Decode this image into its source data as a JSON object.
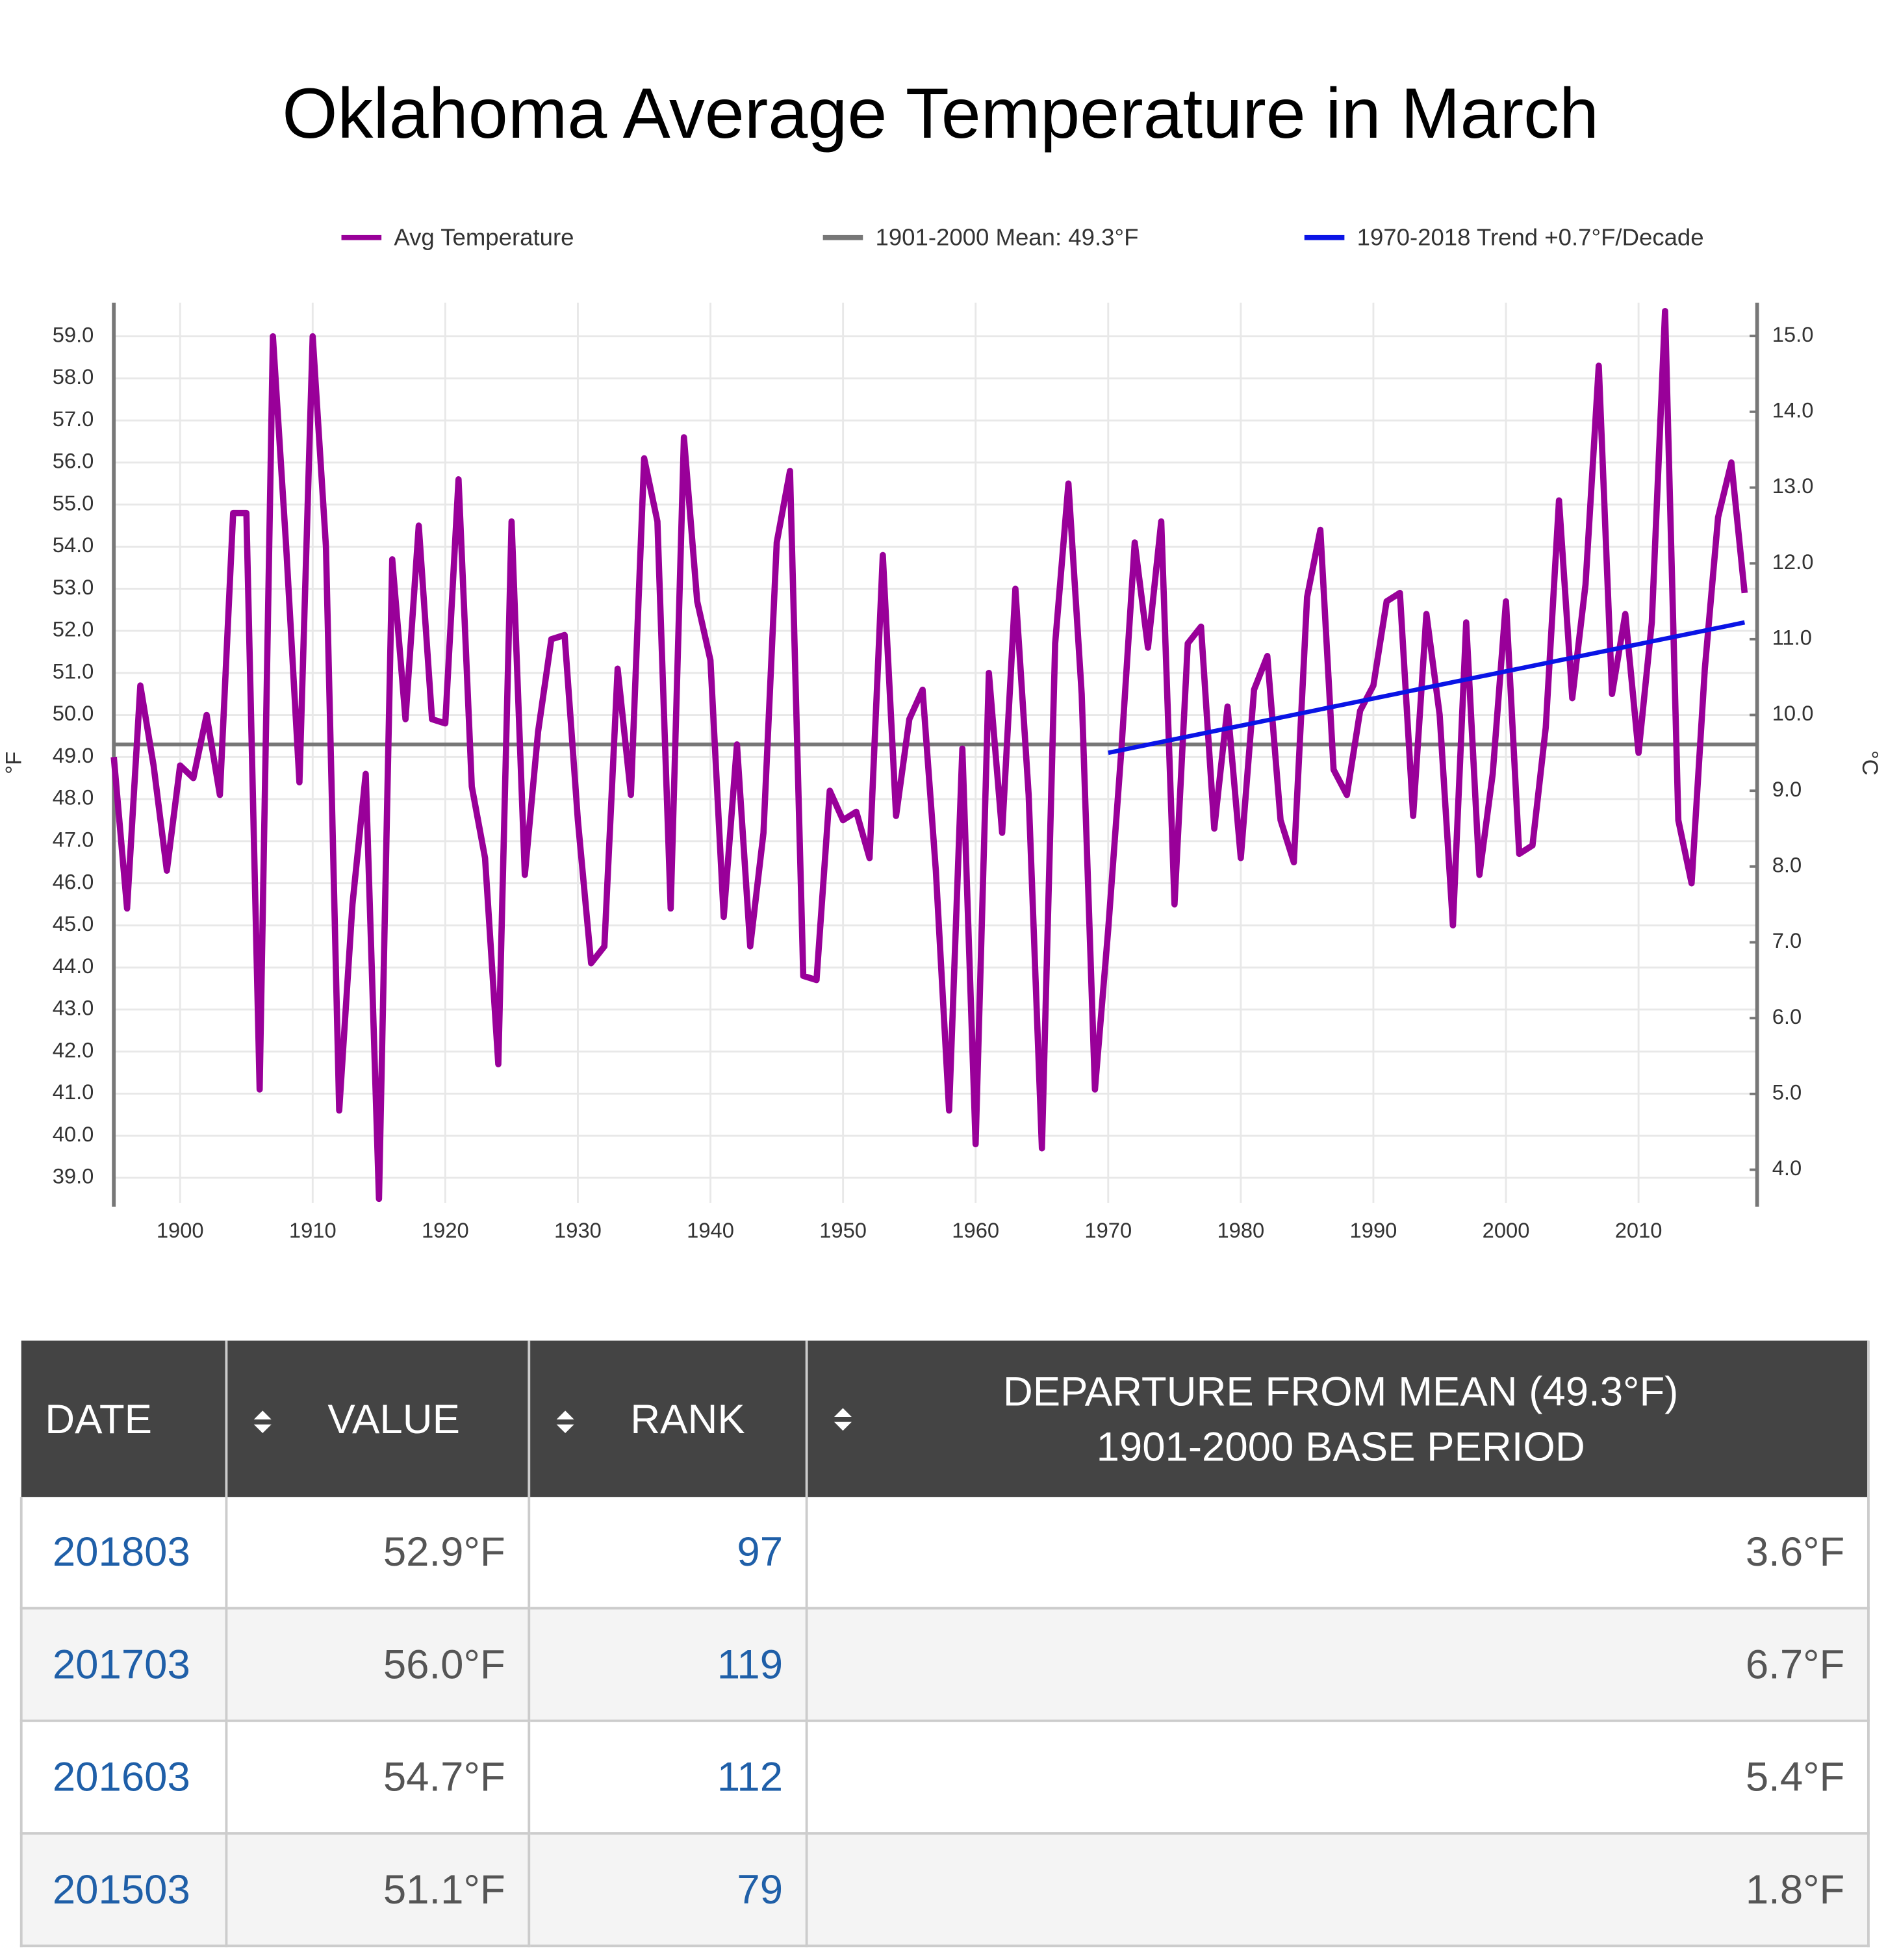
{
  "chart_data": {
    "type": "line",
    "title": "Oklahoma Average Temperature in March",
    "y_label": "°F",
    "y2_label": "°C",
    "x": [
      1895,
      1896,
      1897,
      1898,
      1899,
      1900,
      1901,
      1902,
      1903,
      1904,
      1905,
      1906,
      1907,
      1908,
      1909,
      1910,
      1911,
      1912,
      1913,
      1914,
      1915,
      1916,
      1917,
      1918,
      1919,
      1920,
      1921,
      1922,
      1923,
      1924,
      1925,
      1926,
      1927,
      1928,
      1929,
      1930,
      1931,
      1932,
      1933,
      1934,
      1935,
      1936,
      1937,
      1938,
      1939,
      1940,
      1941,
      1942,
      1943,
      1944,
      1945,
      1946,
      1947,
      1948,
      1949,
      1950,
      1951,
      1952,
      1953,
      1954,
      1955,
      1956,
      1957,
      1958,
      1959,
      1960,
      1961,
      1962,
      1963,
      1964,
      1965,
      1966,
      1967,
      1968,
      1969,
      1970,
      1971,
      1972,
      1973,
      1974,
      1975,
      1976,
      1977,
      1978,
      1979,
      1980,
      1981,
      1982,
      1983,
      1984,
      1985,
      1986,
      1987,
      1988,
      1989,
      1990,
      1991,
      1992,
      1993,
      1994,
      1995,
      1996,
      1997,
      1998,
      1999,
      2000,
      2001,
      2002,
      2003,
      2004,
      2005,
      2006,
      2007,
      2008,
      2009,
      2010,
      2011,
      2012,
      2013,
      2014,
      2015,
      2016,
      2017,
      2018
    ],
    "series": [
      {
        "name": "Avg Temperature",
        "color": "#990099",
        "values": [
          49.0,
          45.4,
          50.7,
          48.8,
          46.3,
          48.8,
          48.5,
          50.0,
          48.1,
          54.8,
          54.8,
          41.1,
          59.0,
          54.0,
          48.4,
          59.0,
          54.0,
          40.6,
          45.5,
          48.6,
          38.5,
          53.7,
          49.9,
          54.5,
          49.9,
          49.8,
          55.6,
          48.3,
          46.6,
          41.7,
          54.6,
          46.2,
          49.6,
          51.8,
          51.9,
          47.5,
          44.1,
          44.5,
          51.1,
          48.1,
          56.1,
          54.6,
          45.4,
          56.6,
          52.7,
          51.3,
          45.2,
          49.3,
          44.5,
          47.2,
          54.1,
          55.8,
          43.8,
          43.7,
          48.2,
          47.5,
          47.7,
          46.6,
          53.8,
          47.6,
          49.9,
          50.6,
          46.3,
          40.6,
          49.2,
          39.8,
          51.0,
          47.2,
          53.0,
          48.1,
          39.7,
          51.7,
          55.5,
          50.5,
          41.1,
          44.9,
          49.2,
          54.1,
          51.6,
          54.6,
          45.5,
          51.7,
          52.1,
          47.3,
          50.2,
          46.6,
          50.6,
          51.4,
          47.5,
          46.5,
          52.8,
          54.4,
          48.7,
          48.1,
          50.1,
          50.7,
          52.7,
          52.9,
          47.6,
          52.4,
          50.0,
          45.0,
          52.2,
          46.2,
          48.6,
          52.7,
          46.7,
          46.9,
          49.7,
          55.1,
          50.4,
          53.1,
          58.3,
          50.5,
          52.4,
          49.1,
          52.2,
          59.6,
          47.5,
          46.0,
          51.1,
          54.7,
          56.0,
          52.9
        ]
      }
    ],
    "mean": {
      "name": "1901-2000 Mean: 49.3°F",
      "color": "#777777",
      "value": 49.3
    },
    "trend": {
      "name": "1970-2018 Trend +0.7°F/Decade",
      "color": "#0a14e6",
      "x": [
        1970,
        2018
      ],
      "values": [
        49.1,
        52.2
      ]
    },
    "xlim": [
      1895,
      2018
    ],
    "xticks": [
      1900,
      1910,
      1920,
      1930,
      1940,
      1950,
      1960,
      1970,
      1980,
      1990,
      2000,
      2010
    ],
    "ylim": [
      38.4,
      59.8
    ],
    "yticks": [
      {
        "value": 39,
        "label": "39.0"
      },
      {
        "value": 40,
        "label": "40.0"
      },
      {
        "value": 41,
        "label": "41.0"
      },
      {
        "value": 42,
        "label": "42.0"
      },
      {
        "value": 43,
        "label": "43.0"
      },
      {
        "value": 44,
        "label": "44.0"
      },
      {
        "value": 45,
        "label": "45.0"
      },
      {
        "value": 46,
        "label": "46.0"
      },
      {
        "value": 47,
        "label": "47.0"
      },
      {
        "value": 48,
        "label": "48.0"
      },
      {
        "value": 49,
        "label": "49.0"
      },
      {
        "value": 50,
        "label": "50.0"
      },
      {
        "value": 51,
        "label": "51.0"
      },
      {
        "value": 52,
        "label": "52.0"
      },
      {
        "value": 53,
        "label": "53.0"
      },
      {
        "value": 54,
        "label": "54.0"
      },
      {
        "value": 55,
        "label": "55.0"
      },
      {
        "value": 56,
        "label": "56.0"
      },
      {
        "value": 57,
        "label": "57.0"
      },
      {
        "value": 58,
        "label": "58.0"
      },
      {
        "value": 59,
        "label": "59.0"
      }
    ],
    "y2lim": [
      3.56,
      15.44
    ],
    "y2ticks": [
      {
        "value": 4,
        "label": "4.0"
      },
      {
        "value": 5,
        "label": "5.0"
      },
      {
        "value": 6,
        "label": "6.0"
      },
      {
        "value": 7,
        "label": "7.0"
      },
      {
        "value": 8,
        "label": "8.0"
      },
      {
        "value": 9,
        "label": "9.0"
      },
      {
        "value": 10,
        "label": "10.0"
      },
      {
        "value": 11,
        "label": "11.0"
      },
      {
        "value": 12,
        "label": "12.0"
      },
      {
        "value": 13,
        "label": "13.0"
      },
      {
        "value": 14,
        "label": "14.0"
      },
      {
        "value": 15,
        "label": "15.0"
      }
    ],
    "grid": true
  },
  "table": {
    "header": [
      "DATE",
      "VALUE",
      "RANK",
      [
        "DEPARTURE FROM MEAN (49.3°F)",
        "1901-2000 BASE PERIOD"
      ]
    ],
    "rows": [
      [
        "201803",
        "52.9°F",
        "97",
        "3.6°F"
      ],
      [
        "201703",
        "56.0°F",
        "119",
        "6.7°F"
      ],
      [
        "201603",
        "54.7°F",
        "112",
        "5.4°F"
      ],
      [
        "201503",
        "51.1°F",
        "79",
        "1.8°F"
      ]
    ]
  }
}
